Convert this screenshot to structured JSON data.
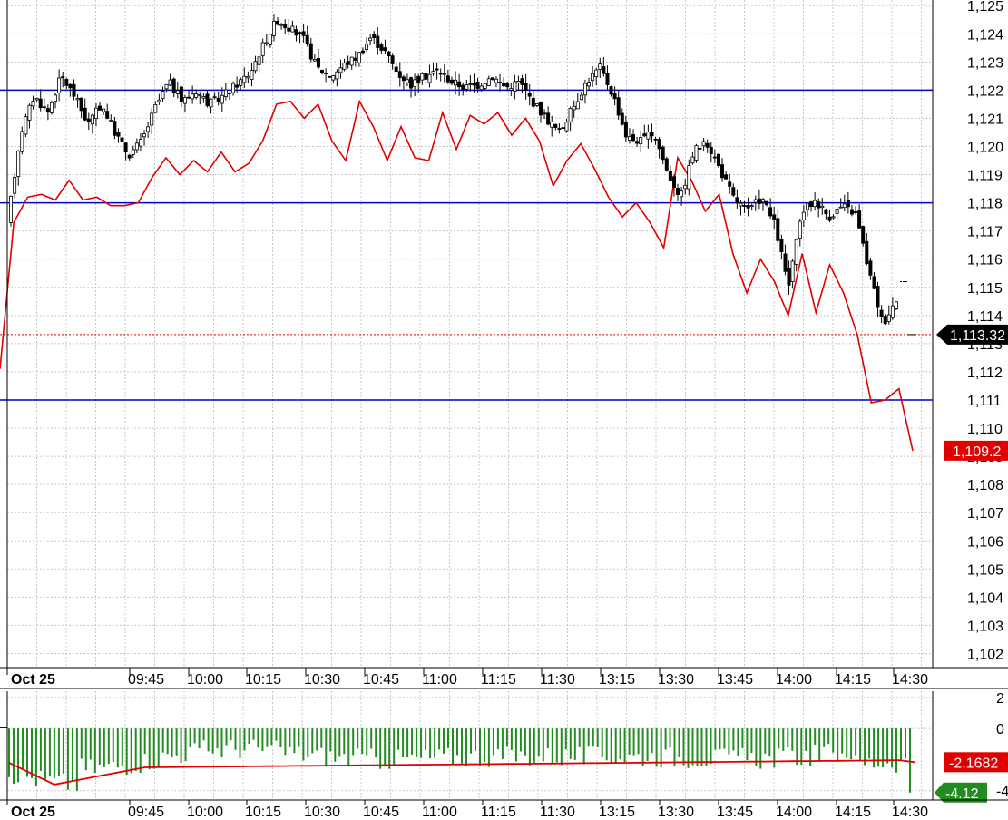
{
  "chart_data": [
    {
      "type": "candlestick",
      "ylim": [
        1101.5,
        1125.2
      ],
      "y_ticks": [
        1102,
        1103,
        1104,
        1105,
        1106,
        1107,
        1108,
        1109,
        1110,
        1111,
        1112,
        1113,
        1114,
        1115,
        1116,
        1117,
        1118,
        1119,
        1120,
        1121,
        1122,
        1123,
        1124,
        1125
      ],
      "y_tick_labels": [
        "1,102",
        "1,103",
        "1,104",
        "1,105",
        "1,106",
        "1,107",
        "1,108",
        "1,109",
        "1,110",
        "1,111",
        "1,112",
        "1,113",
        "1,114",
        "1,115",
        "1,116",
        "1,117",
        "1,118",
        "1,119",
        "1,120",
        "1,121",
        "1,122",
        "1,123",
        "1,124",
        "1,125"
      ],
      "x_labels": [
        "Oct 25",
        "09:45",
        "10:00",
        "10:15",
        "10:30",
        "10:45",
        "11:00",
        "11:15",
        "11:30",
        "13:15",
        "13:30",
        "13:45",
        "14:00",
        "14:15",
        "14:30"
      ],
      "grid": true,
      "horizontal_lines": [
        1122.0,
        1118.0,
        1111.0
      ],
      "horizontal_line_color": "#0000cc",
      "last_price_label": "1,113.32",
      "last_price": 1113.32,
      "red_series_last_label": "1,109.2",
      "red_series_last": 1109.2,
      "price_path": [
        1117.2,
        1120.5,
        1121.8,
        1121.2,
        1122.5,
        1121.8,
        1120.8,
        1121.5,
        1120.5,
        1119.7,
        1120.2,
        1121.4,
        1122.3,
        1121.6,
        1122.0,
        1121.5,
        1121.8,
        1122.2,
        1122.6,
        1123.6,
        1124.5,
        1124.2,
        1123.8,
        1122.8,
        1122.5,
        1122.9,
        1123.2,
        1123.9,
        1123.4,
        1122.6,
        1122.2,
        1122.5,
        1122.7,
        1122.3,
        1122.1,
        1122.2,
        1122.5,
        1122.1,
        1122.3,
        1121.6,
        1121.0,
        1120.5,
        1121.4,
        1122.3,
        1122.8,
        1121.8,
        1120.3,
        1120.2,
        1120.5,
        1119.1,
        1118.2,
        1119.9,
        1120.1,
        1119.1,
        1118.1,
        1117.7,
        1118.2,
        1117.2,
        1115.0,
        1117.7,
        1118.1,
        1117.5,
        1117.9,
        1117.6,
        1115.5,
        1113.7,
        1114.6
      ],
      "red_series": [
        1112.1,
        1117.3,
        1118.2,
        1118.3,
        1118.1,
        1118.8,
        1118.1,
        1118.2,
        1117.9,
        1117.9,
        1118.0,
        1118.9,
        1119.6,
        1119.0,
        1119.5,
        1119.1,
        1119.8,
        1119.1,
        1119.4,
        1120.2,
        1121.5,
        1121.6,
        1121.0,
        1121.5,
        1120.2,
        1119.5,
        1121.6,
        1120.7,
        1119.5,
        1120.7,
        1119.6,
        1119.5,
        1121.2,
        1119.9,
        1121.1,
        1120.8,
        1121.2,
        1120.4,
        1121.0,
        1120.2,
        1118.6,
        1119.5,
        1120.1,
        1119.2,
        1118.2,
        1117.5,
        1118.0,
        1117.3,
        1116.4,
        1119.6,
        1118.8,
        1117.7,
        1118.3,
        1116.2,
        1114.8,
        1116.0,
        1115.2,
        1114.0,
        1116.2,
        1114.1,
        1115.8,
        1114.8,
        1113.3,
        1110.9,
        1111.0,
        1111.4,
        1109.2
      ],
      "colors": {
        "candle": "#000000",
        "red_line": "#e00000",
        "grid": "#c8c8c8",
        "price_tag": "#000000",
        "red_tag": "#e00000"
      }
    },
    {
      "type": "bar",
      "ylim": [
        -4.6,
        2.4
      ],
      "y_ticks": [
        2,
        0,
        -4
      ],
      "y_tick_labels": [
        "2",
        "0",
        "-4"
      ],
      "red_line_label": "-2.1682",
      "red_line_last": -2.1682,
      "bar_last_label": "-4.12",
      "bar_last": -4.12,
      "bar_color": "#228b22",
      "line_color": "#e00000",
      "x_labels": [
        "Oct 25",
        "09:45",
        "10:00",
        "10:15",
        "10:30",
        "10:45",
        "11:00",
        "11:15",
        "11:30",
        "13:15",
        "13:30",
        "13:45",
        "14:00",
        "14:15",
        "14:30"
      ]
    }
  ]
}
